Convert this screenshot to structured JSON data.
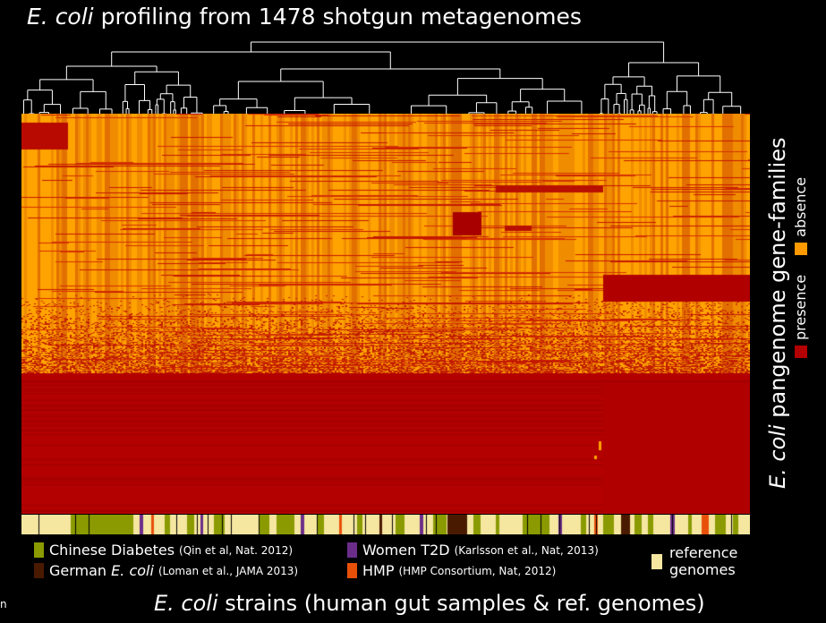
{
  "title": {
    "italic": "E. coli",
    "rest": " profiling from 1478 shotgun metagenomes"
  },
  "y_axis_label": {
    "italic": "E. coli",
    "rest": " pangenome gene-families"
  },
  "x_axis_label": {
    "italic": "E. coli",
    "rest": " strains (human gut samples & ref. genomes)"
  },
  "legend": {
    "presence": {
      "label": "presence",
      "color": "#b30000"
    },
    "absence": {
      "label": "absence",
      "color": "#ff9900"
    }
  },
  "groups": [
    {
      "name": "Chinese Diabetes",
      "citation": "(Qin et al, Nat. 2012)",
      "color": "#8a9a00"
    },
    {
      "name_pre": "German ",
      "name_italic": "E. coli",
      "citation": "(Loman et al., JAMA 2013)",
      "color": "#4a1a00"
    },
    {
      "name": "Women T2D",
      "citation": "(Karlsson et al., Nat, 2013)",
      "color": "#6b2d8a"
    },
    {
      "name": "HMP",
      "citation": "(HMP Consortium, Nat, 2012)",
      "color": "#e8500a"
    }
  ],
  "reference": {
    "line1": "reference",
    "line2": "genomes",
    "color": "#f5e6a0"
  },
  "corner_text": "n",
  "chart_data": {
    "type": "heatmap",
    "title": "E. coli profiling from 1478 shotgun metagenomes",
    "xlabel": "E. coli strains (human gut samples & ref. genomes)",
    "ylabel": "E. coli pangenome gene-families",
    "values_legend": [
      "presence",
      "absence"
    ],
    "column_annotation_legend": [
      "Chinese Diabetes",
      "German E. coli",
      "Women T2D",
      "HMP",
      "reference genomes"
    ],
    "dendrogram": "top (column clustering)"
  }
}
